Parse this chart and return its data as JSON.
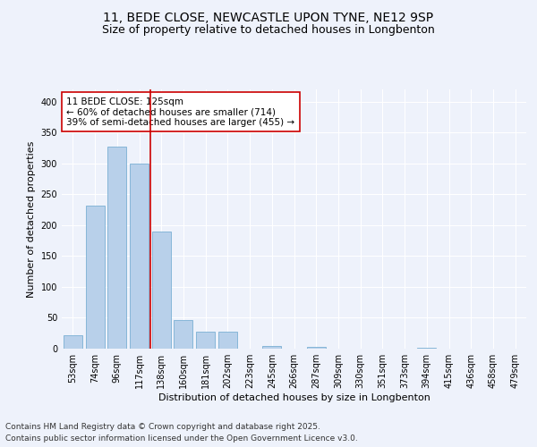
{
  "title_line1": "11, BEDE CLOSE, NEWCASTLE UPON TYNE, NE12 9SP",
  "title_line2": "Size of property relative to detached houses in Longbenton",
  "xlabel": "Distribution of detached houses by size in Longbenton",
  "ylabel": "Number of detached properties",
  "categories": [
    "53sqm",
    "74sqm",
    "96sqm",
    "117sqm",
    "138sqm",
    "160sqm",
    "181sqm",
    "202sqm",
    "223sqm",
    "245sqm",
    "266sqm",
    "287sqm",
    "309sqm",
    "330sqm",
    "351sqm",
    "373sqm",
    "394sqm",
    "415sqm",
    "436sqm",
    "458sqm",
    "479sqm"
  ],
  "values": [
    22,
    232,
    328,
    300,
    190,
    46,
    28,
    28,
    0,
    5,
    0,
    3,
    0,
    0,
    0,
    0,
    2,
    0,
    0,
    0,
    0
  ],
  "bar_color": "#b8d0ea",
  "bar_edge_color": "#7aafd4",
  "vline_x": 3.5,
  "vline_color": "#cc0000",
  "annotation_text": "11 BEDE CLOSE: 125sqm\n← 60% of detached houses are smaller (714)\n39% of semi-detached houses are larger (455) →",
  "annotation_box_color": "#ffffff",
  "annotation_box_edge": "#cc0000",
  "ylim": [
    0,
    420
  ],
  "yticks": [
    0,
    50,
    100,
    150,
    200,
    250,
    300,
    350,
    400
  ],
  "background_color": "#eef2fb",
  "plot_bg_color": "#eef2fb",
  "footer_line1": "Contains HM Land Registry data © Crown copyright and database right 2025.",
  "footer_line2": "Contains public sector information licensed under the Open Government Licence v3.0.",
  "title_fontsize": 10,
  "subtitle_fontsize": 9,
  "axis_label_fontsize": 8,
  "tick_fontsize": 7,
  "annotation_fontsize": 7.5,
  "footer_fontsize": 6.5
}
